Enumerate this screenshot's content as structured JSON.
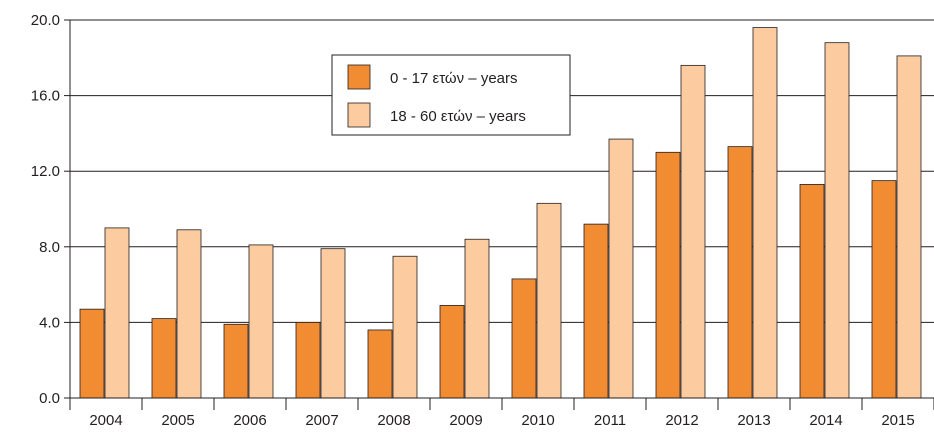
{
  "chart_data": {
    "type": "bar",
    "title": "",
    "xlabel": "",
    "ylabel": "",
    "categories": [
      "2004",
      "2005",
      "2006",
      "2007",
      "2008",
      "2009",
      "2010",
      "2011",
      "2012",
      "2013",
      "2014",
      "2015"
    ],
    "series": [
      {
        "name": "0 - 17 ετών – years",
        "color": "#f28c33",
        "values": [
          4.7,
          4.2,
          3.9,
          4.0,
          3.6,
          4.9,
          6.3,
          9.2,
          13.0,
          13.3,
          11.3,
          11.5
        ]
      },
      {
        "name": "18 - 60 ετών – years",
        "color": "#fccca0",
        "values": [
          9.0,
          8.9,
          8.1,
          7.9,
          7.5,
          8.4,
          10.3,
          13.7,
          17.6,
          19.6,
          18.8,
          18.1
        ]
      }
    ],
    "ylim": [
      0,
      20
    ],
    "yticks": [
      0,
      4,
      8,
      12,
      16,
      20
    ],
    "ytick_labels": [
      "0.0",
      "4.0",
      "8.0",
      "12.0",
      "16.0",
      "20.0"
    ],
    "grid": "horizontal",
    "legend_position": "top-center"
  }
}
